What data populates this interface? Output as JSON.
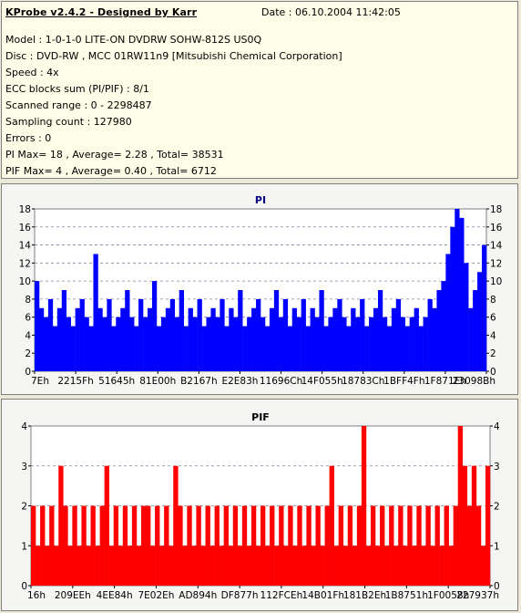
{
  "header": {
    "title": "KProbe v2.4.2 - Designed by Karr",
    "date": "Date : 06.10.2004 11:42:05"
  },
  "info_lines": [
    "Model : 1-0-1-0 LITE-ON DVDRW SOHW-812S  US0Q",
    "Disc : DVD-RW , MCC 01RW11n9 [Mitsubishi Chemical Corporation]",
    "Speed : 4x",
    "ECC blocks sum (PI/PIF) : 8/1",
    "Scanned range : 0 - 2298487",
    "Sampling count : 127980",
    "Errors : 0",
    "PI Max= 18 , Average= 2.28 , Total= 38531",
    "PIF Max= 4 , Average= 0.40 , Total= 6712"
  ],
  "chart_data": [
    {
      "type": "bar",
      "title": "PI",
      "color": "#0000ff",
      "title_color": "#000080",
      "ylim": [
        0,
        18
      ],
      "yticks": [
        "0",
        "2",
        "4",
        "6",
        "8",
        "10",
        "12",
        "14",
        "16",
        "18"
      ],
      "xticks": [
        "7Eh",
        "2215Fh",
        "51645h",
        "81E00h",
        "B2167h",
        "E2E83h",
        "11696Ch",
        "14F055h",
        "18783Ch",
        "1BFF4Fh",
        "1F871Eh",
        "23098Bh"
      ],
      "grid": true,
      "x": [
        0.0,
        0.01,
        0.02,
        0.03,
        0.04,
        0.05,
        0.06,
        0.07,
        0.08,
        0.09,
        0.1,
        0.11,
        0.12,
        0.13,
        0.14,
        0.15,
        0.16,
        0.17,
        0.18,
        0.19,
        0.2,
        0.21,
        0.22,
        0.23,
        0.24,
        0.25,
        0.26,
        0.27,
        0.28,
        0.29,
        0.3,
        0.31,
        0.32,
        0.33,
        0.34,
        0.35,
        0.36,
        0.37,
        0.38,
        0.39,
        0.4,
        0.41,
        0.42,
        0.43,
        0.44,
        0.45,
        0.46,
        0.47,
        0.48,
        0.49,
        0.5,
        0.51,
        0.52,
        0.53,
        0.54,
        0.55,
        0.56,
        0.57,
        0.58,
        0.59,
        0.6,
        0.61,
        0.62,
        0.63,
        0.64,
        0.65,
        0.66,
        0.67,
        0.68,
        0.69,
        0.7,
        0.71,
        0.72,
        0.73,
        0.74,
        0.75,
        0.76,
        0.77,
        0.78,
        0.79,
        0.8,
        0.81,
        0.82,
        0.83,
        0.84,
        0.85,
        0.86,
        0.87,
        0.88,
        0.89,
        0.9,
        0.91,
        0.92,
        0.93,
        0.94,
        0.95,
        0.96,
        0.97,
        0.98,
        0.99
      ],
      "values": [
        10,
        7,
        6,
        8,
        5,
        7,
        9,
        6,
        5,
        7,
        8,
        6,
        5,
        13,
        7,
        6,
        8,
        5,
        6,
        7,
        9,
        6,
        5,
        8,
        6,
        7,
        10,
        5,
        6,
        7,
        8,
        6,
        9,
        5,
        7,
        6,
        8,
        5,
        6,
        7,
        6,
        8,
        5,
        7,
        6,
        9,
        5,
        6,
        7,
        8,
        6,
        5,
        7,
        9,
        6,
        8,
        5,
        7,
        6,
        8,
        5,
        7,
        6,
        9,
        5,
        6,
        7,
        8,
        6,
        5,
        7,
        6,
        8,
        5,
        6,
        7,
        9,
        6,
        5,
        7,
        8,
        6,
        5,
        6,
        7,
        5,
        6,
        8,
        7,
        9,
        10,
        13,
        16,
        18,
        17,
        12,
        7,
        9,
        11,
        14
      ]
    },
    {
      "type": "bar",
      "title": "PIF",
      "color": "#ff0000",
      "title_color": "#000000",
      "ylim": [
        0,
        4
      ],
      "yticks": [
        "0",
        "1",
        "2",
        "3",
        "4"
      ],
      "xticks": [
        "16h",
        "209EEh",
        "4EE84h",
        "7E02Eh",
        "AD894h",
        "DF877h",
        "112FCEh",
        "14B01Fh",
        "181B2Eh",
        "1B8751h",
        "1F0058h",
        "227937h"
      ],
      "grid": true,
      "x": [
        0.0,
        0.01,
        0.02,
        0.03,
        0.04,
        0.05,
        0.06,
        0.07,
        0.08,
        0.09,
        0.1,
        0.11,
        0.12,
        0.13,
        0.14,
        0.15,
        0.16,
        0.17,
        0.18,
        0.19,
        0.2,
        0.21,
        0.22,
        0.23,
        0.24,
        0.25,
        0.26,
        0.27,
        0.28,
        0.29,
        0.3,
        0.31,
        0.32,
        0.33,
        0.34,
        0.35,
        0.36,
        0.37,
        0.38,
        0.39,
        0.4,
        0.41,
        0.42,
        0.43,
        0.44,
        0.45,
        0.46,
        0.47,
        0.48,
        0.49,
        0.5,
        0.51,
        0.52,
        0.53,
        0.54,
        0.55,
        0.56,
        0.57,
        0.58,
        0.59,
        0.6,
        0.61,
        0.62,
        0.63,
        0.64,
        0.65,
        0.66,
        0.67,
        0.68,
        0.69,
        0.7,
        0.71,
        0.72,
        0.73,
        0.74,
        0.75,
        0.76,
        0.77,
        0.78,
        0.79,
        0.8,
        0.81,
        0.82,
        0.83,
        0.84,
        0.85,
        0.86,
        0.87,
        0.88,
        0.89,
        0.9,
        0.91,
        0.92,
        0.93,
        0.94,
        0.95,
        0.96,
        0.97,
        0.98,
        0.99
      ],
      "values": [
        2,
        1,
        2,
        1,
        2,
        1,
        3,
        2,
        1,
        2,
        1,
        2,
        1,
        2,
        1,
        2,
        3,
        1,
        2,
        1,
        2,
        1,
        2,
        1,
        2,
        2,
        1,
        2,
        1,
        2,
        1,
        3,
        2,
        1,
        2,
        1,
        2,
        1,
        2,
        1,
        2,
        1,
        2,
        1,
        2,
        1,
        2,
        1,
        2,
        1,
        2,
        1,
        2,
        1,
        2,
        1,
        2,
        1,
        2,
        1,
        2,
        1,
        2,
        1,
        2,
        3,
        1,
        2,
        1,
        2,
        1,
        2,
        4,
        1,
        2,
        1,
        2,
        1,
        2,
        1,
        2,
        1,
        2,
        1,
        2,
        1,
        2,
        1,
        2,
        1,
        2,
        1,
        2,
        4,
        3,
        2,
        3,
        2,
        1,
        3
      ]
    }
  ]
}
